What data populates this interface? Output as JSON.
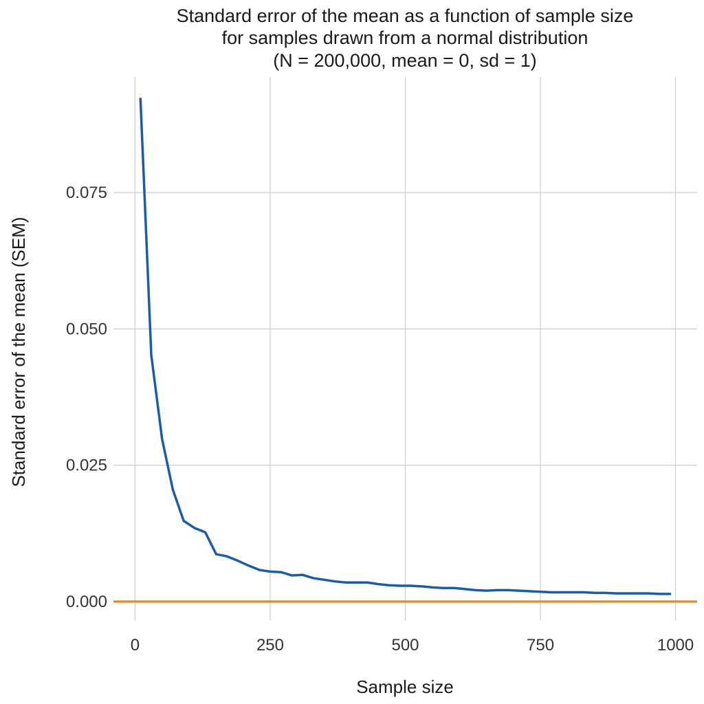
{
  "chart_data": {
    "type": "line",
    "title_lines": [
      "Standard error of the mean as a function of sample size",
      "for samples drawn from a normal distribution",
      "(N = 200,000, mean = 0, sd = 1)"
    ],
    "xlabel": "Sample size",
    "ylabel": "Standard error of the mean (SEM)",
    "xlim": [
      -40,
      1040
    ],
    "ylim": [
      -0.0034,
      0.0962
    ],
    "x_ticks": [
      0,
      250,
      500,
      750,
      1000
    ],
    "x_tick_labels": [
      "0",
      "250",
      "500",
      "750",
      "1000"
    ],
    "y_ticks": [
      0,
      0.025,
      0.05,
      0.075
    ],
    "y_tick_labels": [
      "0.000",
      "0.025",
      "0.050",
      "0.075"
    ],
    "grid": true,
    "series": [
      {
        "color": "#1a5ca8",
        "x": [
          10,
          30,
          50,
          70,
          90,
          110,
          130,
          150,
          170,
          190,
          210,
          230,
          250,
          270,
          290,
          310,
          330,
          350,
          370,
          390,
          410,
          430,
          450,
          470,
          490,
          510,
          530,
          550,
          570,
          590,
          610,
          630,
          650,
          670,
          690,
          710,
          730,
          750,
          770,
          790,
          810,
          830,
          850,
          870,
          890,
          910,
          930,
          950,
          970,
          990
        ],
        "y": [
          0.0922,
          0.0452,
          0.0298,
          0.0205,
          0.0148,
          0.0135,
          0.0127,
          0.0087,
          0.0083,
          0.0075,
          0.0066,
          0.0058,
          0.0055,
          0.0054,
          0.0048,
          0.0049,
          0.0043,
          0.004,
          0.0037,
          0.0035,
          0.0035,
          0.0035,
          0.0032,
          0.003,
          0.0029,
          0.0029,
          0.0028,
          0.0026,
          0.0025,
          0.0025,
          0.0023,
          0.0021,
          0.002,
          0.0021,
          0.0021,
          0.002,
          0.0019,
          0.0018,
          0.0017,
          0.0017,
          0.0017,
          0.0017,
          0.0016,
          0.0016,
          0.0015,
          0.0015,
          0.0015,
          0.0015,
          0.0014,
          0.0014
        ]
      }
    ],
    "reference_line": {
      "y": 0,
      "color": "#e08a22"
    }
  }
}
